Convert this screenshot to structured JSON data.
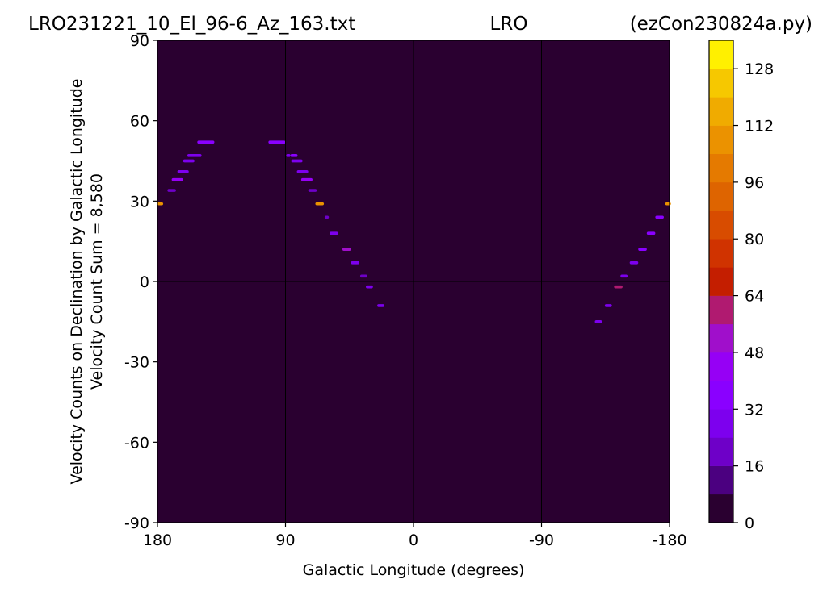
{
  "header": {
    "left": "LRO231221_10_El_96-6_Az_163.txt",
    "center": "LRO",
    "right": "(ezCon230824a.py)"
  },
  "chart_data": {
    "type": "heatmap",
    "xlabel": "Galactic Longitude (degrees)",
    "ylabel": "Velocity Counts on Declination by Galactic Longitude",
    "ylabel2": "Velocity Count Sum = 8,580",
    "x_ticks": [
      "180",
      "90",
      "0",
      "-90",
      "-180"
    ],
    "x_tick_values": [
      180,
      90,
      0,
      -90,
      -180
    ],
    "y_ticks": [
      "90",
      "60",
      "30",
      "0",
      "-30",
      "-60",
      "-90"
    ],
    "y_tick_values": [
      90,
      60,
      30,
      0,
      -30,
      -60,
      -90
    ],
    "xlim": [
      180,
      -180
    ],
    "ylim": [
      -90,
      90
    ],
    "background_color": "#2a0030",
    "grid_lines_x": [
      90,
      0,
      -90
    ],
    "grid_lines_y": [
      0
    ],
    "colorbar": {
      "ticks": [
        "0",
        "16",
        "32",
        "48",
        "64",
        "80",
        "96",
        "112",
        "128"
      ],
      "tick_values": [
        0,
        16,
        32,
        48,
        64,
        80,
        96,
        112,
        128
      ],
      "range": [
        0,
        136
      ],
      "step": 8,
      "colors": [
        "#2a0030",
        "#4b0080",
        "#6e00c8",
        "#7d00ee",
        "#8a00ff",
        "#9600f5",
        "#a00fcb",
        "#b01a70",
        "#c41e00",
        "#d03300",
        "#d84c00",
        "#de6400",
        "#e57a00",
        "#eb9200",
        "#f0ab00",
        "#f6c800",
        "#fff000"
      ]
    },
    "points": [
      {
        "lon": 178,
        "dec": 29,
        "width": 4,
        "value": 110
      },
      {
        "lon": 170,
        "dec": 34,
        "width": 6,
        "value": 20
      },
      {
        "lon": 166,
        "dec": 38,
        "width": 8,
        "value": 40
      },
      {
        "lon": 162,
        "dec": 41,
        "width": 8,
        "value": 30
      },
      {
        "lon": 158,
        "dec": 45,
        "width": 8,
        "value": 28
      },
      {
        "lon": 154,
        "dec": 47,
        "width": 10,
        "value": 30
      },
      {
        "lon": 146,
        "dec": 52,
        "width": 12,
        "value": 36
      },
      {
        "lon": 96,
        "dec": 52,
        "width": 12,
        "value": 36
      },
      {
        "lon": 88,
        "dec": 47,
        "width": 3,
        "value": 28
      },
      {
        "lon": 84,
        "dec": 47,
        "width": 5,
        "value": 32
      },
      {
        "lon": 82,
        "dec": 45,
        "width": 8,
        "value": 30
      },
      {
        "lon": 78,
        "dec": 41,
        "width": 8,
        "value": 28
      },
      {
        "lon": 75,
        "dec": 38,
        "width": 8,
        "value": 40
      },
      {
        "lon": 71,
        "dec": 34,
        "width": 6,
        "value": 20
      },
      {
        "lon": 66,
        "dec": 29,
        "width": 6,
        "value": 110
      },
      {
        "lon": 61,
        "dec": 24,
        "width": 3,
        "value": 18
      },
      {
        "lon": 56,
        "dec": 18,
        "width": 6,
        "value": 30
      },
      {
        "lon": 47,
        "dec": 12,
        "width": 6,
        "value": 55
      },
      {
        "lon": 41,
        "dec": 7,
        "width": 6,
        "value": 28
      },
      {
        "lon": 35,
        "dec": 2,
        "width": 5,
        "value": 20
      },
      {
        "lon": 31,
        "dec": -2,
        "width": 5,
        "value": 30
      },
      {
        "lon": 23,
        "dec": -9,
        "width": 5,
        "value": 28
      },
      {
        "lon": -130,
        "dec": -15,
        "width": 5,
        "value": 28
      },
      {
        "lon": -137,
        "dec": -9,
        "width": 5,
        "value": 30
      },
      {
        "lon": -144,
        "dec": -2,
        "width": 6,
        "value": 58
      },
      {
        "lon": -148,
        "dec": 2,
        "width": 5,
        "value": 24
      },
      {
        "lon": -155,
        "dec": 7,
        "width": 6,
        "value": 28
      },
      {
        "lon": -161,
        "dec": 12,
        "width": 6,
        "value": 36
      },
      {
        "lon": -167,
        "dec": 18,
        "width": 6,
        "value": 32
      },
      {
        "lon": -173,
        "dec": 24,
        "width": 6,
        "value": 36
      },
      {
        "lon": -179,
        "dec": 29,
        "width": 4,
        "value": 110
      }
    ]
  }
}
